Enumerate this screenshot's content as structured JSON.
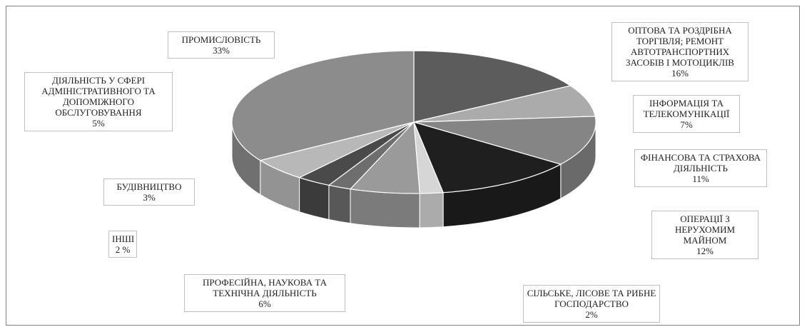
{
  "chart_data": {
    "type": "pie",
    "title": "",
    "slices": [
      {
        "label": "ОПТОВА ТА РОЗДРІБНА ТОРГІВЛЯ; РЕМОНТ АВТОТРАНСПОРТНИХ ЗАСОБІВ І МОТОЦИКЛІВ",
        "value_label": "16%",
        "value": 16,
        "color": "#5c5c5c"
      },
      {
        "label": "ІНФОРМАЦІЯ ТА ТЕЛЕКОМУНІКАЦІЇ",
        "value_label": "7%",
        "value": 7,
        "color": "#ababab"
      },
      {
        "label": "ФІНАНСОВА ТА СТРАХОВА ДІЯЛЬНІСТЬ",
        "value_label": "11%",
        "value": 11,
        "color": "#858585"
      },
      {
        "label": "ОПЕРАЦІЇ З НЕРУХОМИМ МАЙНОМ",
        "value_label": "12%",
        "value": 12,
        "color": "#1f1f1f"
      },
      {
        "label": "СІЛЬСЬКЕ, ЛІСОВЕ ТА РИБНЕ ГОСПОДАРСТВО",
        "value_label": "2%",
        "value": 2,
        "color": "#d6d6d6"
      },
      {
        "label": "ПРОФЕСІЙНА, НАУКОВА ТА ТЕХНІЧНА ДІЯЛЬНІСТЬ",
        "value_label": "6%",
        "value": 6,
        "color": "#9a9a9a"
      },
      {
        "label": "ІНШІ",
        "value_label": "2 %",
        "value": 2,
        "color": "#6e6e6e"
      },
      {
        "label": "БУДІВНИЦТВО",
        "value_label": "3%",
        "value": 3,
        "color": "#4a4a4a"
      },
      {
        "label": "ДІЯЛЬНІСТЬ У СФЕРІ АДМІНІСТРАТИВНОГО ТА ДОПОМІЖНОГО ОБСЛУГОВУВАННЯ",
        "value_label": "5%",
        "value": 5,
        "color": "#b8b8b8"
      },
      {
        "label": "ПРОМИСЛОВІСТЬ",
        "value_label": "33%",
        "value": 33,
        "color": "#8c8c8c"
      }
    ],
    "style": "3d-pie",
    "legend": "none",
    "data_labels": "outside-boxed"
  }
}
